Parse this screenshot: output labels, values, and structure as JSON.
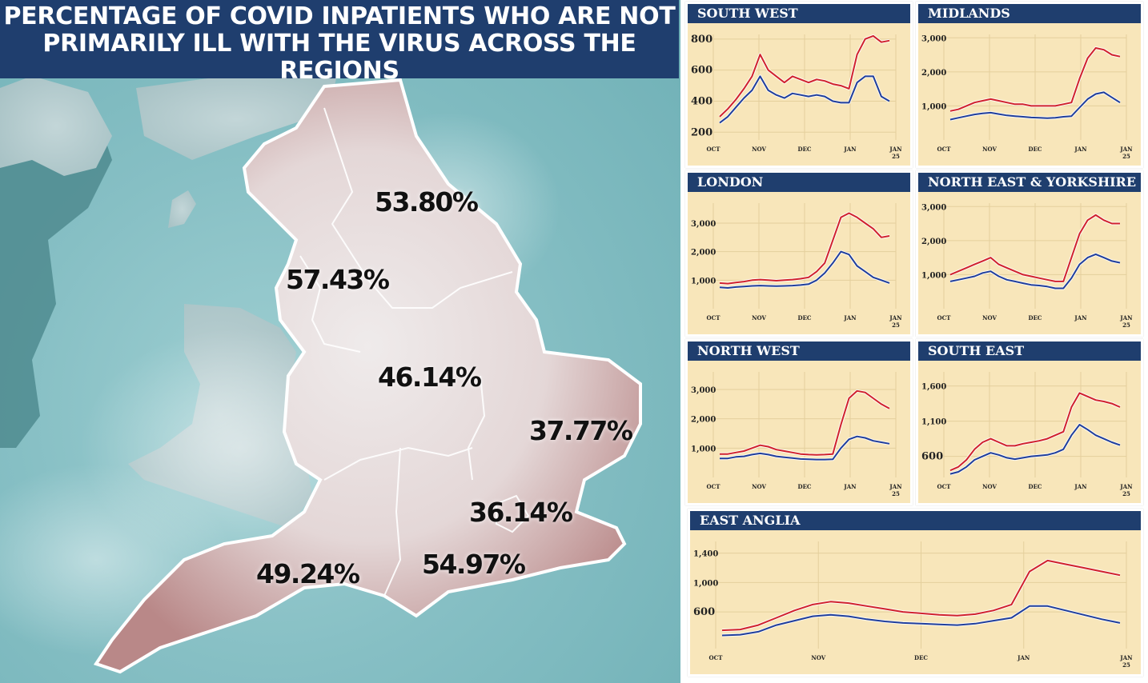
{
  "title": "Percentage of Covid inpatients who are not primarily ill with the virus across the regions",
  "map": {
    "regions": [
      {
        "name": "North East & Yorkshire",
        "value": "53.80%"
      },
      {
        "name": "North West",
        "value": "57.43%"
      },
      {
        "name": "Midlands",
        "value": "46.14%"
      },
      {
        "name": "East Anglia",
        "value": "37.77%"
      },
      {
        "name": "London",
        "value": "36.14%"
      },
      {
        "name": "South West",
        "value": "49.24%"
      },
      {
        "name": "South East",
        "value": "54.97%"
      }
    ],
    "colors": {
      "sea": "#86bfc4",
      "land": "#e9e2e2",
      "land_edge": "#b07f80",
      "border": "#ffffff"
    }
  },
  "chart_data": [
    {
      "type": "line",
      "title": "South West",
      "x_ticks": [
        "OCT",
        "NOV",
        "DEC",
        "JAN",
        "JAN 25"
      ],
      "y_ticks": [
        "200",
        "400",
        "600",
        "800"
      ],
      "ylim": [
        150,
        830
      ],
      "series": [
        {
          "color": "#d0212d",
          "values": [
            300,
            350,
            410,
            480,
            560,
            700,
            600,
            560,
            520,
            560,
            540,
            520,
            540,
            530,
            510,
            500,
            480,
            700,
            800,
            820,
            780,
            790
          ]
        },
        {
          "color": "#1f3e9c",
          "values": [
            260,
            300,
            360,
            420,
            470,
            560,
            470,
            440,
            420,
            450,
            440,
            430,
            440,
            430,
            400,
            390,
            390,
            520,
            560,
            560,
            430,
            400
          ]
        }
      ]
    },
    {
      "type": "line",
      "title": "Midlands",
      "x_ticks": [
        "OCT",
        "NOV",
        "DEC",
        "JAN",
        "JAN 25"
      ],
      "y_ticks": [
        "1,000",
        "2,000",
        "3,000"
      ],
      "ylim": [
        0,
        3100
      ],
      "series": [
        {
          "color": "#d0212d",
          "values": [
            850,
            900,
            1000,
            1100,
            1150,
            1200,
            1150,
            1100,
            1050,
            1050,
            1000,
            1000,
            1000,
            1000,
            1050,
            1100,
            1800,
            2400,
            2700,
            2650,
            2500,
            2450
          ]
        },
        {
          "color": "#1f3e9c",
          "values": [
            600,
            650,
            700,
            750,
            780,
            800,
            760,
            720,
            700,
            680,
            660,
            650,
            640,
            650,
            680,
            700,
            950,
            1200,
            1350,
            1400,
            1250,
            1100
          ]
        }
      ]
    },
    {
      "type": "line",
      "title": "London",
      "x_ticks": [
        "OCT",
        "NOV",
        "DEC",
        "JAN",
        "JAN 25"
      ],
      "y_ticks": [
        "1,000",
        "2,000",
        "3,000"
      ],
      "ylim": [
        0,
        3700
      ],
      "series": [
        {
          "color": "#d0212d",
          "values": [
            900,
            880,
            920,
            950,
            1000,
            1020,
            1000,
            980,
            1000,
            1020,
            1050,
            1100,
            1300,
            1600,
            2400,
            3200,
            3350,
            3200,
            3000,
            2800,
            2500,
            2550
          ]
        },
        {
          "color": "#1f3e9c",
          "values": [
            750,
            730,
            760,
            780,
            800,
            810,
            800,
            790,
            800,
            810,
            830,
            860,
            1000,
            1250,
            1600,
            2000,
            1900,
            1500,
            1300,
            1100,
            1000,
            900
          ]
        }
      ]
    },
    {
      "type": "line",
      "title": "North East & Yorkshire",
      "x_ticks": [
        "OCT",
        "NOV",
        "DEC",
        "JAN",
        "JAN 25"
      ],
      "y_ticks": [
        "1,000",
        "2,000",
        "3,000"
      ],
      "ylim": [
        0,
        3100
      ],
      "series": [
        {
          "color": "#d0212d",
          "values": [
            1000,
            1100,
            1200,
            1300,
            1400,
            1500,
            1300,
            1200,
            1100,
            1000,
            950,
            900,
            850,
            800,
            800,
            1500,
            2200,
            2600,
            2750,
            2600,
            2500,
            2500
          ]
        },
        {
          "color": "#1f3e9c",
          "values": [
            800,
            850,
            900,
            950,
            1050,
            1100,
            950,
            850,
            800,
            750,
            700,
            680,
            650,
            600,
            600,
            900,
            1300,
            1500,
            1600,
            1500,
            1400,
            1350
          ]
        }
      ]
    },
    {
      "type": "line",
      "title": "North West",
      "x_ticks": [
        "OCT",
        "NOV",
        "DEC",
        "JAN",
        "JAN 25"
      ],
      "y_ticks": [
        "1,000",
        "2,000",
        "3,000"
      ],
      "ylim": [
        0,
        3600
      ],
      "series": [
        {
          "color": "#d0212d",
          "values": [
            800,
            800,
            850,
            900,
            1000,
            1100,
            1050,
            950,
            900,
            850,
            800,
            780,
            770,
            780,
            800,
            1800,
            2700,
            2950,
            2900,
            2700,
            2500,
            2350
          ]
        },
        {
          "color": "#1f3e9c",
          "values": [
            650,
            650,
            700,
            720,
            780,
            820,
            780,
            720,
            690,
            660,
            630,
            620,
            610,
            610,
            620,
            1000,
            1300,
            1400,
            1350,
            1250,
            1200,
            1150
          ]
        }
      ]
    },
    {
      "type": "line",
      "title": "South East",
      "x_ticks": [
        "OCT",
        "NOV",
        "DEC",
        "JAN",
        "JAN 25"
      ],
      "y_ticks": [
        "600",
        "1,100",
        "1,600"
      ],
      "ylim": [
        300,
        1800
      ],
      "series": [
        {
          "color": "#d0212d",
          "values": [
            400,
            450,
            550,
            700,
            800,
            850,
            800,
            750,
            750,
            780,
            800,
            820,
            850,
            900,
            950,
            1300,
            1500,
            1450,
            1400,
            1380,
            1350,
            1300
          ]
        },
        {
          "color": "#1f3e9c",
          "values": [
            350,
            380,
            450,
            550,
            600,
            650,
            620,
            580,
            560,
            580,
            600,
            610,
            620,
            650,
            700,
            900,
            1050,
            980,
            900,
            850,
            800,
            760
          ]
        }
      ]
    },
    {
      "type": "line",
      "title": "East Anglia",
      "x_ticks": [
        "OCT",
        "NOV",
        "DEC",
        "JAN",
        "JAN 25"
      ],
      "y_ticks": [
        "600",
        "1,000",
        "1,400"
      ],
      "ylim": [
        100,
        1560
      ],
      "series": [
        {
          "color": "#d0212d",
          "values": [
            350,
            360,
            420,
            520,
            620,
            700,
            740,
            720,
            680,
            640,
            600,
            580,
            560,
            550,
            570,
            620,
            700,
            1150,
            1300,
            1250,
            1200,
            1150,
            1100
          ]
        },
        {
          "color": "#1f3e9c",
          "values": [
            280,
            290,
            330,
            420,
            480,
            540,
            560,
            540,
            500,
            470,
            450,
            440,
            430,
            420,
            440,
            480,
            520,
            680,
            680,
            620,
            560,
            500,
            450
          ]
        }
      ]
    }
  ]
}
